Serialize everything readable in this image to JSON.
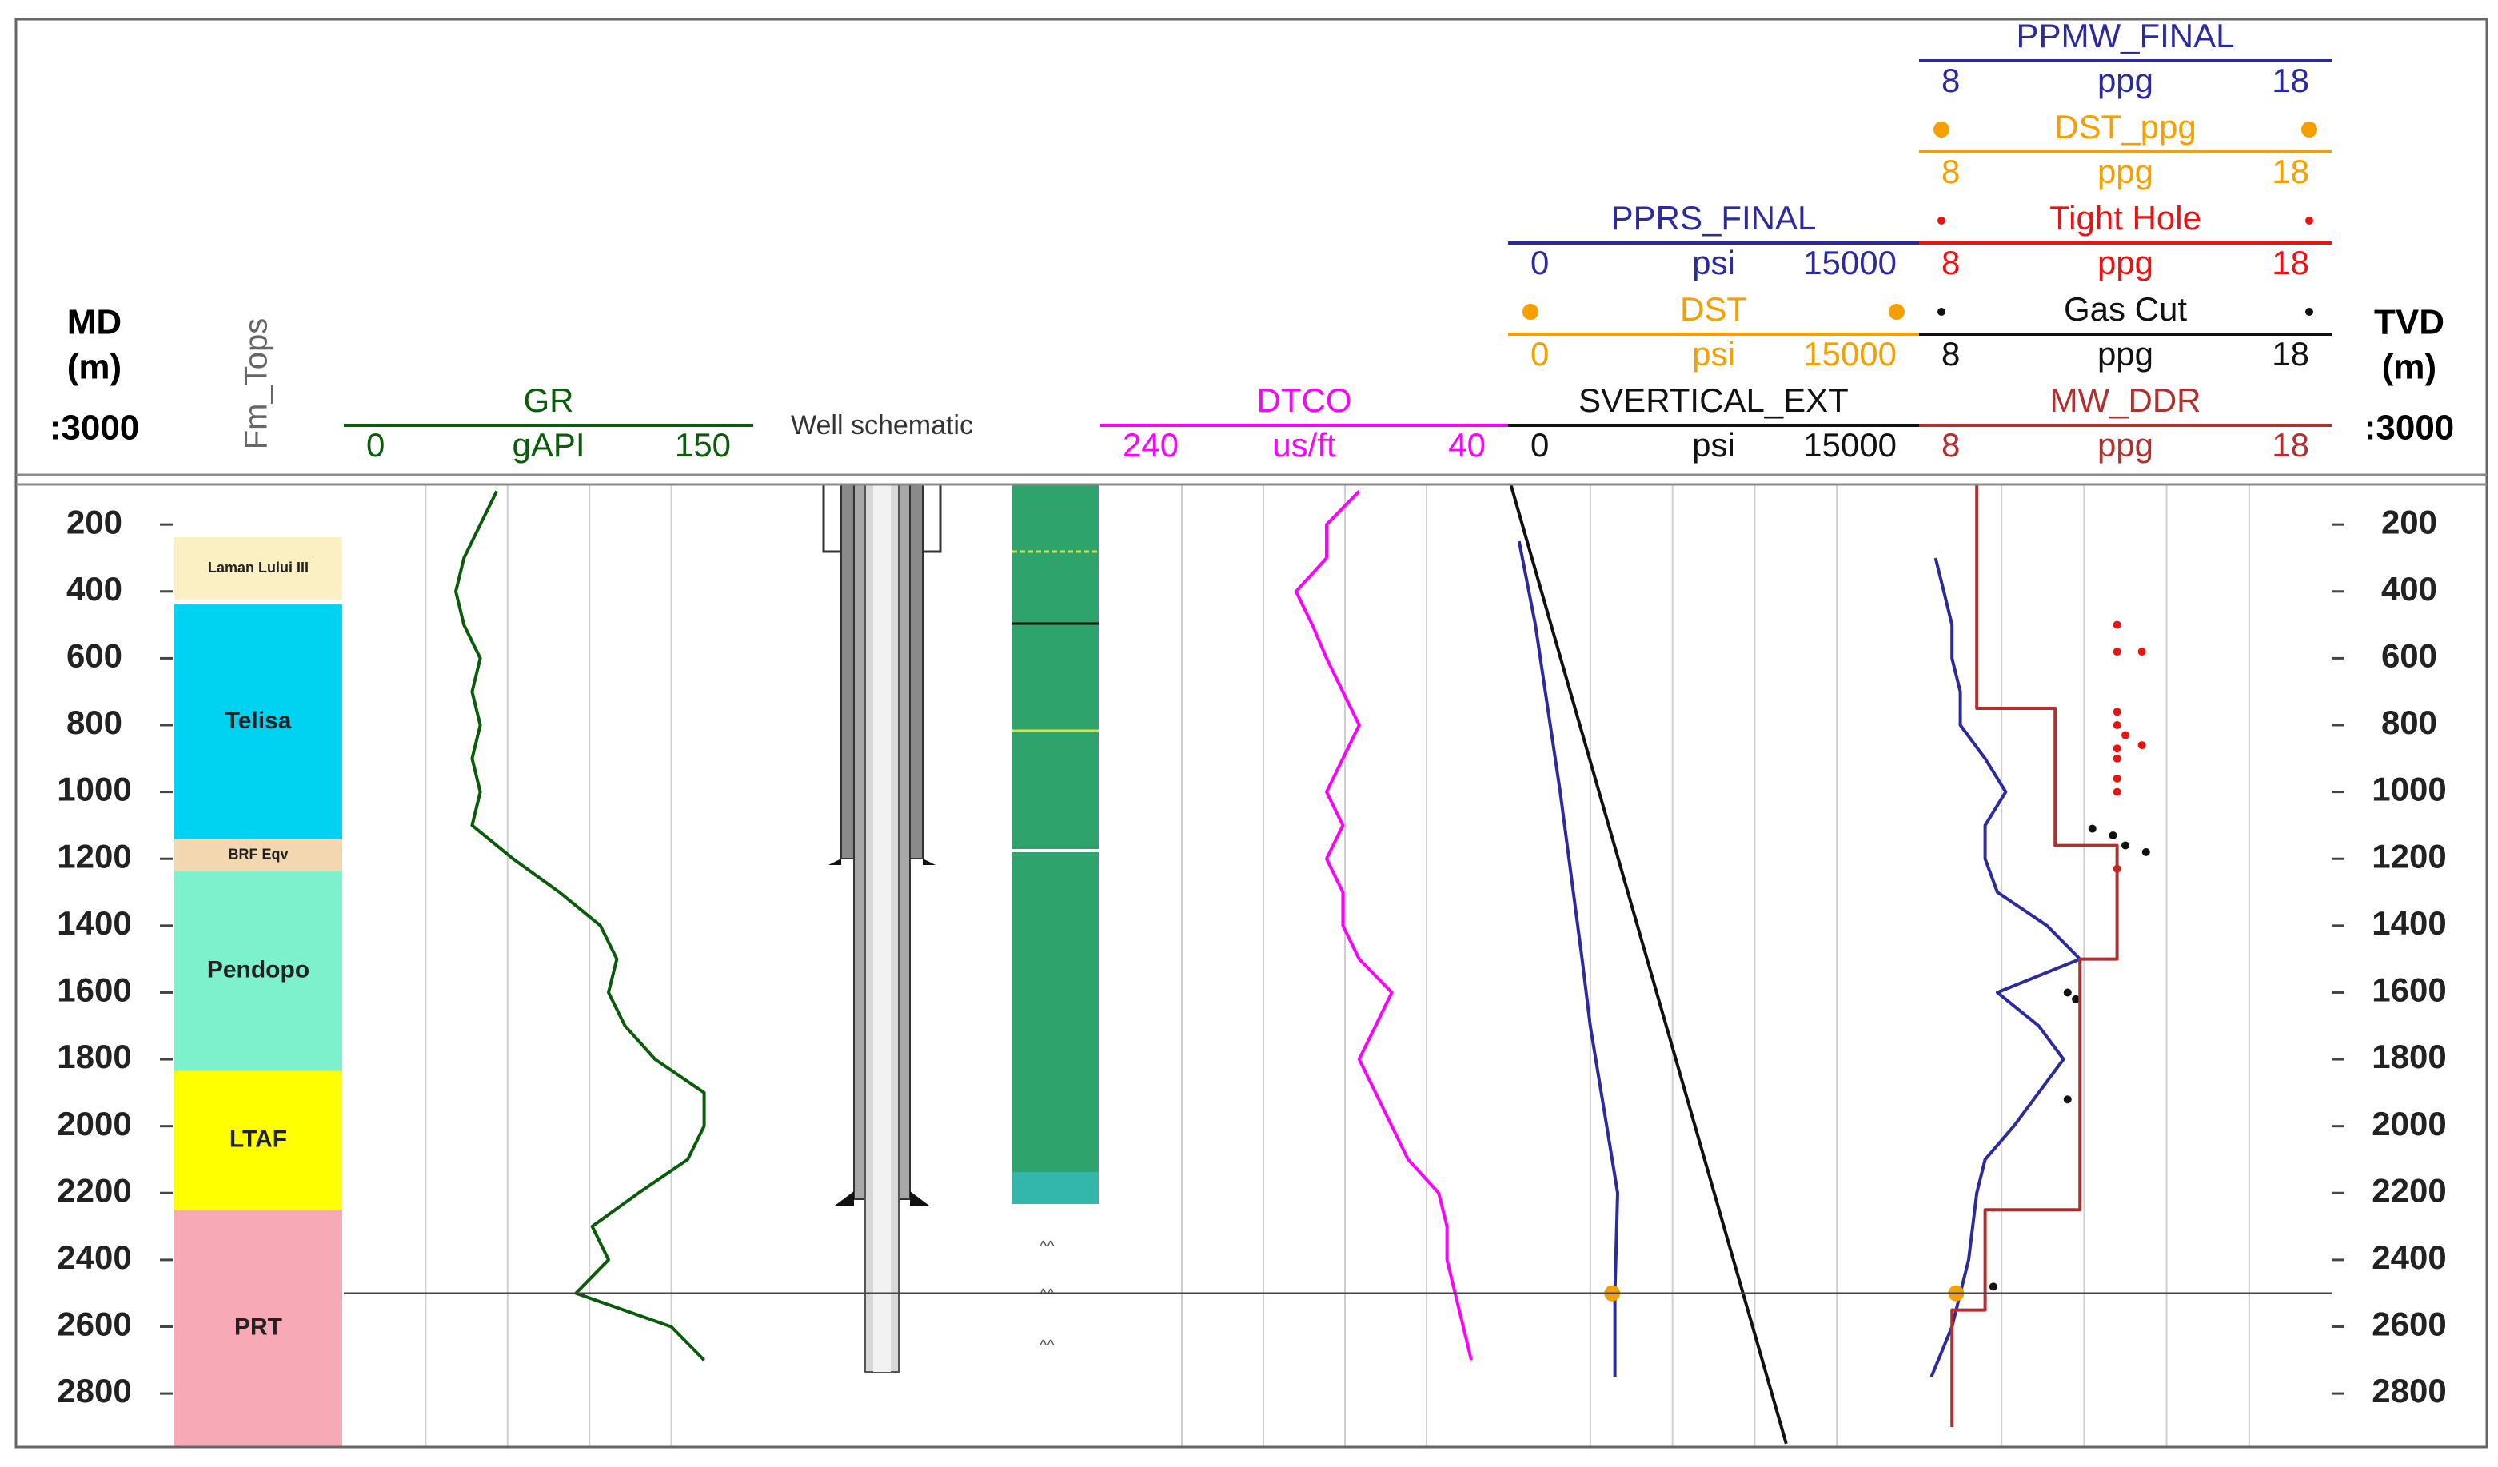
{
  "chart_data": [
    {
      "type": "depth",
      "title": "MD",
      "unit": "(m)",
      "scale": ":3000",
      "ylim": [
        80,
        2960
      ],
      "yticks": [
        200,
        400,
        600,
        800,
        1000,
        1200,
        1400,
        1600,
        1800,
        2000,
        2200,
        2400,
        2600,
        2800
      ],
      "reference_depth": 2500
    },
    {
      "type": "zones",
      "title": "Fm_Tops",
      "zones": [
        {
          "name": "Laman Lului III",
          "top": 238,
          "base": 425,
          "color": "#fbf0c4"
        },
        {
          "name": "Telisa",
          "top": 439,
          "base": 1142,
          "color": "#00d2f2"
        },
        {
          "name": "BRF Eqv",
          "top": 1142,
          "base": 1237,
          "color": "#f3d7b0"
        },
        {
          "name": "Pendopo",
          "top": 1237,
          "base": 1835,
          "color": "#7df0cc"
        },
        {
          "name": "LTAF",
          "top": 1835,
          "base": 2251,
          "color": "#ffff00"
        },
        {
          "name": "PRT",
          "top": 2251,
          "base": 2958,
          "color": "#f7a9b6"
        }
      ]
    },
    {
      "type": "line",
      "xgrid": [
        30,
        60,
        90,
        120
      ],
      "series": [
        {
          "name": "GR",
          "unit": "gAPI",
          "color": "#0a5c0a",
          "xlim": [
            0,
            150
          ],
          "mode": "line",
          "depths": [
            100,
            200,
            300,
            400,
            500,
            600,
            700,
            800,
            900,
            1000,
            1100,
            1200,
            1300,
            1400,
            1500,
            1600,
            1700,
            1800,
            1900,
            2000,
            2100,
            2200,
            2300,
            2400,
            2500,
            2600,
            2700
          ],
          "values": [
            56,
            50,
            44,
            41,
            44,
            50,
            47,
            50,
            47,
            50,
            47,
            62,
            79,
            94,
            100,
            97,
            103,
            114,
            132,
            132,
            126,
            108,
            91,
            97,
            85,
            120,
            132
          ]
        }
      ]
    },
    {
      "type": "schematic",
      "title": "Well schematic"
    },
    {
      "type": "lithology"
    },
    {
      "type": "line",
      "xgrid": [
        200,
        160,
        120,
        80
      ],
      "series": [
        {
          "name": "DTCO",
          "unit": "us/ft",
          "color": "#ff00ff",
          "xlim": [
            240,
            40
          ],
          "mode": "line",
          "depths": [
            100,
            200,
            300,
            400,
            500,
            600,
            700,
            800,
            900,
            1000,
            1100,
            1200,
            1300,
            1400,
            1500,
            1600,
            1700,
            1800,
            1900,
            2000,
            2100,
            2200,
            2300,
            2400,
            2500,
            2600,
            2700
          ],
          "values": [
            113,
            129,
            129,
            144,
            136,
            129,
            121,
            113,
            121,
            129,
            121,
            129,
            121,
            121,
            113,
            97,
            105,
            113,
            105,
            97,
            89,
            74,
            70,
            70,
            66,
            62,
            58
          ]
        }
      ]
    },
    {
      "type": "line",
      "xgrid": [
        3000,
        6000,
        9000,
        12000
      ],
      "series": [
        {
          "name": "PPRS_FINAL",
          "unit": "psi",
          "color": "#2b2b9e",
          "xlim": [
            0,
            15000
          ],
          "mode": "line",
          "depths": [
            250,
            500,
            1000,
            1500,
            1700,
            2000,
            2200,
            2500,
            2750
          ],
          "values": [
            400,
            1000,
            1900,
            2700,
            3000,
            3600,
            4000,
            3900,
            3900
          ]
        },
        {
          "name": "DST",
          "unit": "psi",
          "color": "#f5a000",
          "xlim": [
            0,
            15000
          ],
          "mode": "points",
          "depths": [
            2500
          ],
          "values": [
            3800
          ]
        },
        {
          "name": "SVERTICAL_EXT",
          "unit": "psi",
          "color": "#111111",
          "xlim": [
            0,
            15000
          ],
          "mode": "line",
          "depths": [
            80,
            2950
          ],
          "values": [
            100,
            10150
          ]
        }
      ]
    },
    {
      "type": "line",
      "xgrid": [
        10,
        12,
        14,
        16
      ],
      "series": [
        {
          "name": "PPMW_FINAL",
          "unit": "ppg",
          "color": "#2b2b9e",
          "xlim": [
            8,
            18
          ],
          "mode": "line",
          "depths": [
            300,
            400,
            500,
            600,
            700,
            800,
            900,
            1000,
            1100,
            1200,
            1300,
            1400,
            1500,
            1600,
            1700,
            1800,
            1900,
            2000,
            2100,
            2200,
            2400,
            2600,
            2750
          ],
          "values": [
            8.4,
            8.6,
            8.8,
            8.8,
            9.0,
            9.0,
            9.6,
            10.1,
            9.6,
            9.6,
            9.9,
            11.1,
            11.9,
            9.9,
            10.9,
            11.5,
            10.9,
            10.3,
            9.6,
            9.4,
            9.2,
            8.8,
            8.3
          ]
        },
        {
          "name": "DST_ppg",
          "unit": "ppg",
          "color": "#f5a000",
          "xlim": [
            8,
            18
          ],
          "mode": "points",
          "depths": [
            2500
          ],
          "values": [
            8.9
          ]
        },
        {
          "name": "Tight Hole",
          "unit": "ppg",
          "color": "#ee1111",
          "xlim": [
            8,
            18
          ],
          "mode": "points",
          "depths": [
            500,
            580,
            580,
            760,
            800,
            830,
            860,
            870,
            900,
            960,
            1000,
            1230
          ],
          "values": [
            12.8,
            12.8,
            13.4,
            12.8,
            12.8,
            13.0,
            13.4,
            12.8,
            12.8,
            12.8,
            12.8,
            12.8
          ]
        },
        {
          "name": "Gas Cut",
          "unit": "ppg",
          "color": "#111111",
          "xlim": [
            8,
            18
          ],
          "mode": "points",
          "depths": [
            1110,
            1130,
            1160,
            1180,
            1600,
            1620,
            1920,
            2480
          ],
          "values": [
            12.2,
            12.7,
            13.0,
            13.5,
            11.6,
            11.8,
            11.6,
            9.8
          ]
        },
        {
          "name": "MW_DDR",
          "unit": "ppg",
          "color": "#b03030",
          "xlim": [
            8,
            18
          ],
          "mode": "line",
          "depths": [
            80,
            750,
            750,
            1160,
            1160,
            1500,
            1500,
            2250,
            2250,
            2550,
            2550,
            2900
          ],
          "values": [
            9.4,
            9.4,
            11.3,
            11.3,
            12.8,
            12.8,
            11.9,
            11.9,
            9.6,
            9.6,
            8.8,
            8.8
          ]
        }
      ]
    },
    {
      "type": "depth",
      "title": "TVD",
      "unit": "(m)",
      "scale": ":3000",
      "ylim": [
        80,
        2960
      ],
      "yticks": [
        200,
        400,
        600,
        800,
        1000,
        1200,
        1400,
        1600,
        1800,
        2000,
        2200,
        2400,
        2600,
        2800
      ]
    }
  ]
}
